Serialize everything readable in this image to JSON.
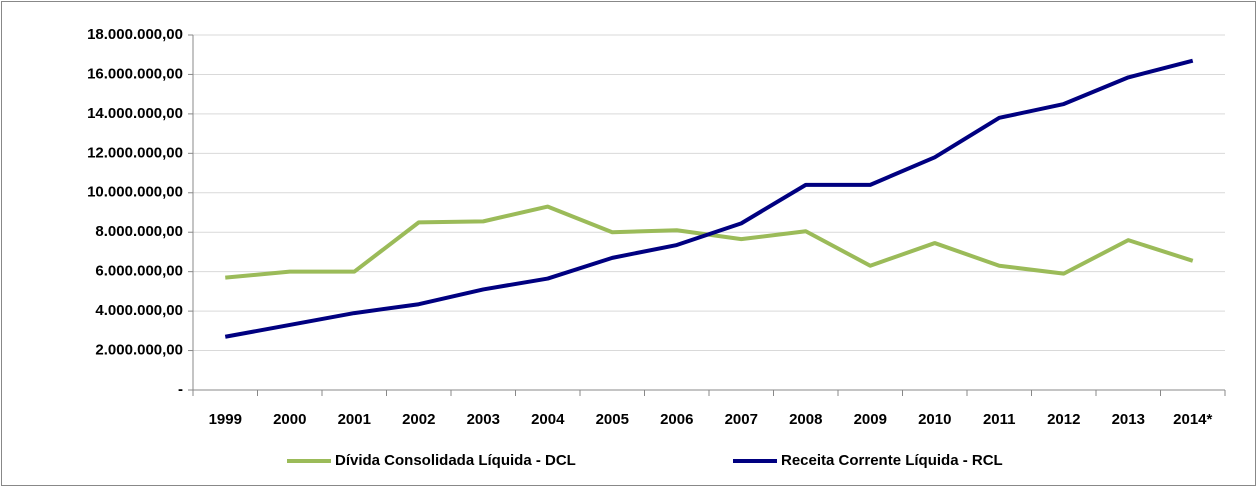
{
  "chart_data": {
    "type": "line",
    "categories": [
      "1999",
      "2000",
      "2001",
      "2002",
      "2003",
      "2004",
      "2005",
      "2006",
      "2007",
      "2008",
      "2009",
      "2010",
      "2011",
      "2012",
      "2013",
      "2014*"
    ],
    "series": [
      {
        "name": "Dívida Consolidada Líquida - DCL",
        "color": "#9bbb59",
        "values": [
          5700000,
          6000000,
          6000000,
          8500000,
          8550000,
          9300000,
          8000000,
          8100000,
          7650000,
          8050000,
          6300000,
          7450000,
          6300000,
          5900000,
          7600000,
          6550000
        ]
      },
      {
        "name": "Receita Corrente Líquida - RCL",
        "color": "#000080",
        "values": [
          2700000,
          3300000,
          3900000,
          4350000,
          5100000,
          5650000,
          6700000,
          7350000,
          8450000,
          10400000,
          10400000,
          11800000,
          13800000,
          14500000,
          15850000,
          16700000
        ]
      }
    ],
    "ylim": [
      0,
      18000000
    ],
    "yticks": [
      {
        "value": 0,
        "label": "-"
      },
      {
        "value": 2000000,
        "label": "2.000.000,00"
      },
      {
        "value": 4000000,
        "label": "4.000.000,00"
      },
      {
        "value": 6000000,
        "label": "6.000.000,00"
      },
      {
        "value": 8000000,
        "label": "8.000.000,00"
      },
      {
        "value": 10000000,
        "label": "10.000.000,00"
      },
      {
        "value": 12000000,
        "label": "12.000.000,00"
      },
      {
        "value": 14000000,
        "label": "14.000.000,00"
      },
      {
        "value": 16000000,
        "label": "16.000.000,00"
      },
      {
        "value": 18000000,
        "label": "18.000.000,00"
      }
    ],
    "grid": true,
    "legend": "bottom"
  }
}
